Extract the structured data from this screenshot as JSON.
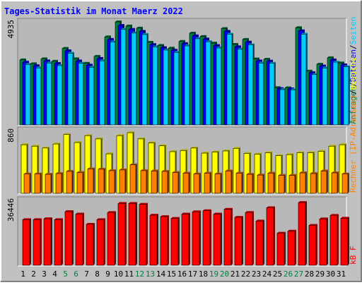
{
  "chart_data": [
    {
      "type": "bar",
      "title": "Tages-Statistik im Monat Maerz 2022",
      "ymax_label": "4935",
      "legend": [
        {
          "text": "Anfragen",
          "color": "#008040"
        },
        {
          "text": "/",
          "color": "#000000"
        },
        {
          "text": "Dateien",
          "color": "#0000ff"
        },
        {
          "text": "/",
          "color": "#000000"
        },
        {
          "text": "Seiten",
          "color": "#00ccff"
        }
      ],
      "categories": [
        "1",
        "2",
        "3",
        "4",
        "5",
        "6",
        "7",
        "8",
        "9",
        "10",
        "11",
        "12",
        "13",
        "14",
        "15",
        "16",
        "17",
        "18",
        "19",
        "20",
        "21",
        "22",
        "23",
        "24",
        "25",
        "26",
        "27",
        "28",
        "29",
        "30",
        "31"
      ],
      "weekend_days": [
        "5",
        "6",
        "12",
        "13",
        "19",
        "20",
        "26",
        "27"
      ],
      "ylim": [
        0,
        4935
      ],
      "series": [
        {
          "name": "Anfragen",
          "color": "#008040",
          "values": [
            3115,
            2930,
            3165,
            3045,
            3665,
            3165,
            2950,
            3285,
            4215,
            4935,
            4735,
            4635,
            3955,
            3805,
            3675,
            3995,
            4395,
            4235,
            3915,
            4615,
            3855,
            4095,
            3155,
            3145,
            1785,
            1775,
            4655,
            2575,
            2905,
            3215,
            2965
          ]
        },
        {
          "name": "Dateien",
          "color": "#0000ff",
          "values": [
            3000,
            2830,
            3065,
            2940,
            3550,
            3060,
            2860,
            3180,
            4095,
            4760,
            4570,
            4480,
            3845,
            3695,
            3575,
            3890,
            4265,
            4110,
            3800,
            4480,
            3740,
            3965,
            3060,
            3050,
            1735,
            1725,
            4505,
            2495,
            2820,
            3110,
            2875
          ]
        },
        {
          "name": "Seiten",
          "color": "#00ccff",
          "values": [
            2895,
            2730,
            2960,
            2840,
            3430,
            2950,
            2760,
            3070,
            3975,
            4570,
            4400,
            4330,
            3735,
            3585,
            3470,
            3785,
            4130,
            3985,
            3685,
            4345,
            3625,
            3835,
            2960,
            2950,
            1690,
            1680,
            4345,
            2410,
            2725,
            3005,
            2785
          ]
        }
      ]
    },
    {
      "type": "bar",
      "ymax_label": "860",
      "legend": [
        {
          "text": "Rechner (IP-Adressen)",
          "color": "#ff8000"
        },
        {
          "text": "/",
          "color": "#000000"
        },
        {
          "text": "Besuche",
          "color": "#ffff00"
        }
      ],
      "categories": [
        "1",
        "2",
        "3",
        "4",
        "5",
        "6",
        "7",
        "8",
        "9",
        "10",
        "11",
        "12",
        "13",
        "14",
        "15",
        "16",
        "17",
        "18",
        "19",
        "20",
        "21",
        "22",
        "23",
        "24",
        "25",
        "26",
        "27",
        "28",
        "29",
        "30",
        "31"
      ],
      "ylim": [
        0,
        860
      ],
      "series": [
        {
          "name": "Besuche",
          "color": "#ffff00",
          "values": [
            665,
            645,
            620,
            675,
            805,
            695,
            790,
            745,
            540,
            790,
            830,
            745,
            690,
            650,
            570,
            585,
            620,
            550,
            565,
            580,
            615,
            545,
            535,
            555,
            515,
            530,
            555,
            555,
            575,
            645,
            665
          ]
        },
        {
          "name": "Rechner",
          "color": "#ff8000",
          "values": [
            265,
            265,
            260,
            270,
            300,
            285,
            335,
            330,
            310,
            320,
            390,
            310,
            305,
            300,
            285,
            275,
            265,
            275,
            265,
            305,
            275,
            260,
            250,
            275,
            245,
            245,
            280,
            270,
            305,
            280,
            265
          ]
        }
      ]
    },
    {
      "type": "bar",
      "ymax_label": "36446",
      "legend": [
        {
          "text": "kB F",
          "color": "#ff0000"
        }
      ],
      "categories": [
        "1",
        "2",
        "3",
        "4",
        "5",
        "6",
        "7",
        "8",
        "9",
        "10",
        "11",
        "12",
        "13",
        "14",
        "15",
        "16",
        "17",
        "18",
        "19",
        "20",
        "21",
        "22",
        "23",
        "24",
        "25",
        "26",
        "27",
        "28",
        "29",
        "30",
        "31"
      ],
      "ylim": [
        0,
        36446
      ],
      "series": [
        {
          "name": "kB F",
          "color": "#ff0000",
          "values": [
            25600,
            25600,
            26100,
            25600,
            30100,
            28700,
            23000,
            25600,
            29600,
            34700,
            34700,
            34200,
            28100,
            27300,
            26300,
            28700,
            30000,
            30600,
            28700,
            31400,
            26900,
            29600,
            24800,
            32300,
            18000,
            19100,
            35200,
            22400,
            26000,
            28000,
            26400
          ]
        }
      ]
    }
  ],
  "colors": {
    "background": "#c0c0c0",
    "plot_bg": "#b8b8b8",
    "title": "#0000ff",
    "weekday_label": "#000000",
    "weekend_label": "#008040"
  }
}
